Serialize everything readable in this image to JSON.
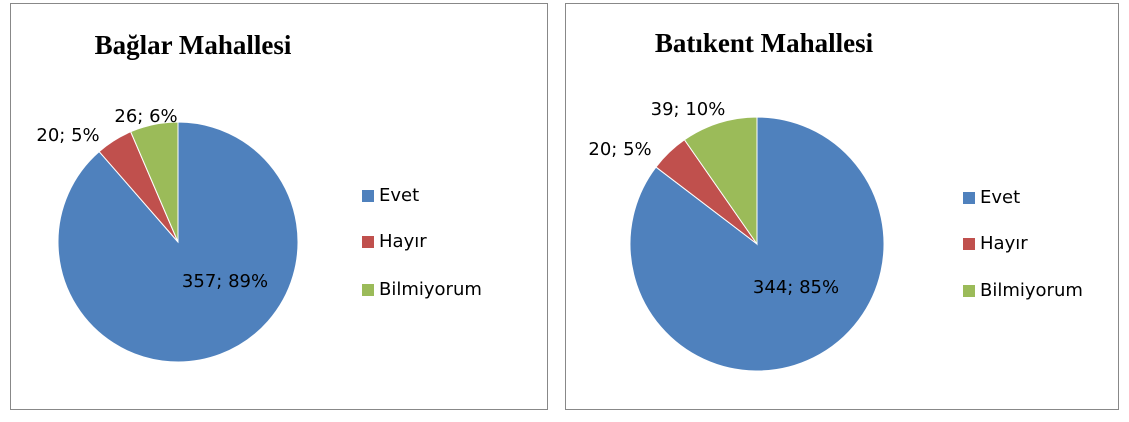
{
  "chart_data": [
    {
      "type": "pie",
      "title": "Bağlar Mahallesi",
      "categories": [
        "Evet",
        "Hayır",
        "Bilmiyorum"
      ],
      "values": [
        357,
        20,
        26
      ],
      "value_labels": [
        "357; 89%",
        "20; 5%",
        "26; 6%"
      ],
      "colors": [
        "#4f81bd",
        "#c0504d",
        "#9bbb59"
      ]
    },
    {
      "type": "pie",
      "title": "Batıkent Mahallesi",
      "categories": [
        "Evet",
        "Hayır",
        "Bilmiyorum"
      ],
      "values": [
        344,
        20,
        39
      ],
      "value_labels": [
        "344; 85%",
        "20; 5%",
        "39; 10%"
      ],
      "colors": [
        "#4f81bd",
        "#c0504d",
        "#9bbb59"
      ]
    }
  ]
}
